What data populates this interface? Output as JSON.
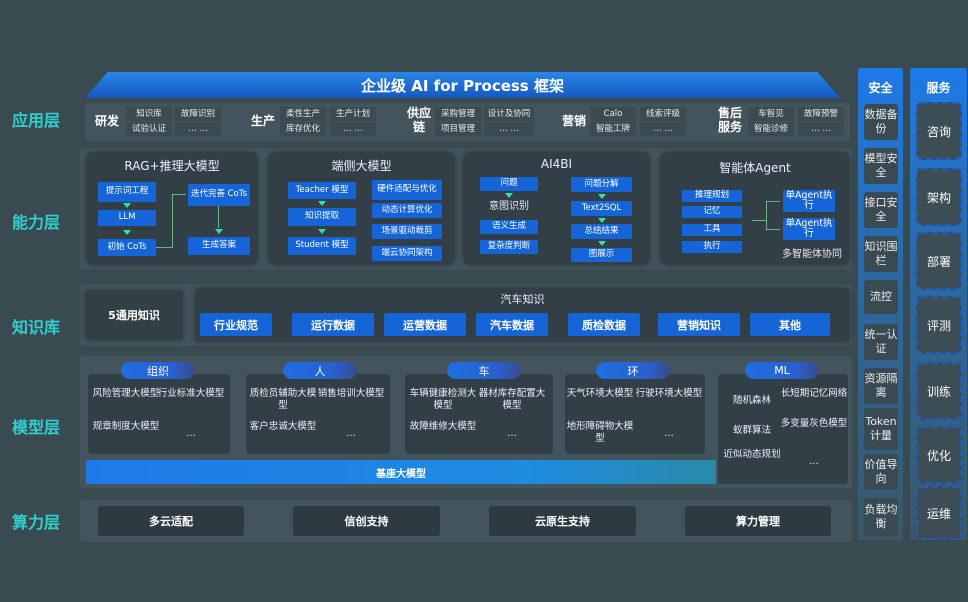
{
  "title": "企业级 AI for Process 框架",
  "layers": {
    "app": "应用层",
    "ability": "能力层",
    "knowledge": "知识库",
    "model": "模型层",
    "compute": "算力层"
  },
  "app": [
    {
      "group": "研发",
      "items": [
        "知识库",
        "试验认证",
        "故障识别",
        "… …"
      ]
    },
    {
      "group": "生产",
      "items": [
        "柔性生产",
        "库存优化",
        "生产计划",
        "… …"
      ]
    },
    {
      "group": "供应链",
      "items": [
        "采购管理",
        "项目管理",
        "设计及协同",
        "… …"
      ]
    },
    {
      "group": "营销",
      "items": [
        "Calo",
        "智能工牌",
        "线索评级",
        "… …"
      ]
    },
    {
      "group": "售后服务",
      "items": [
        "车智见",
        "智能诊修",
        "故障预警",
        "… …"
      ]
    }
  ],
  "ability": {
    "rag": {
      "title": "RAG+推理大模型",
      "items": [
        "提示词工程",
        "LLM",
        "初始 CoTs",
        "迭代完善 CoTs",
        "生成答案"
      ]
    },
    "edge": {
      "title": "端侧大模型",
      "items": [
        "Teacher 模型",
        "知识提取",
        "Student 模型",
        "硬件适配与优化",
        "动态计算优化",
        "场景驱动裁剪",
        "端云协同架构"
      ]
    },
    "ai4bi": {
      "title": "AI4BI",
      "items": [
        "问题",
        "意图识别",
        "语义生成",
        "复杂度判断",
        "问题分解",
        "Text2SQL",
        "总结结果",
        "图展示"
      ]
    },
    "agent": {
      "title": "智能体Agent",
      "items": [
        "推理规划",
        "记忆",
        "工具",
        "执行",
        "单Agent执行",
        "单Agent执行",
        "多智能体协同"
      ]
    }
  },
  "knowledge": {
    "general": "5通用知识",
    "auto_title": "汽车知识",
    "chips": [
      "行业规范",
      "运行数据",
      "运营数据",
      "汽车数据",
      "质检数据",
      "营销知识",
      "其他"
    ]
  },
  "model": {
    "groups": [
      {
        "name": "组织",
        "items": [
          "风险管理大模型",
          "行业标准大模型",
          "规章制度大模型",
          "…"
        ]
      },
      {
        "name": "人",
        "items": [
          "质检员辅助大模型",
          "销售培训大模型",
          "客户忠诚大模型",
          "…"
        ]
      },
      {
        "name": "车",
        "items": [
          "车辆健康检测大模型",
          "器材库存配置大模型",
          "故障维修大模型",
          "…"
        ]
      },
      {
        "name": "环",
        "items": [
          "天气环境大模型",
          "行驶环境大模型",
          "地形障碍物大模型",
          "…"
        ]
      },
      {
        "name": "ML",
        "items": [
          "随机森林",
          "长短期记忆网络",
          "蚁群算法",
          "多变量灰色模型",
          "近似动态规划",
          "…"
        ]
      }
    ],
    "base": "基座大模型"
  },
  "compute": [
    "多云适配",
    "信创支持",
    "云原生支持",
    "算力管理"
  ],
  "security": {
    "title": "安全",
    "items": [
      "数据备份",
      "模型安全",
      "接口安全",
      "知识围栏",
      "流控",
      "统一认证",
      "资源隔离",
      "Token计量",
      "价值导向",
      "负载均衡"
    ]
  },
  "service": {
    "title": "服务",
    "items": [
      "咨询",
      "架构",
      "部署",
      "评测",
      "训练",
      "优化",
      "运维"
    ]
  },
  "colors": {
    "accent": "#1565d8",
    "layer_label": "#2fd0d0",
    "background": "#3a4a51"
  }
}
